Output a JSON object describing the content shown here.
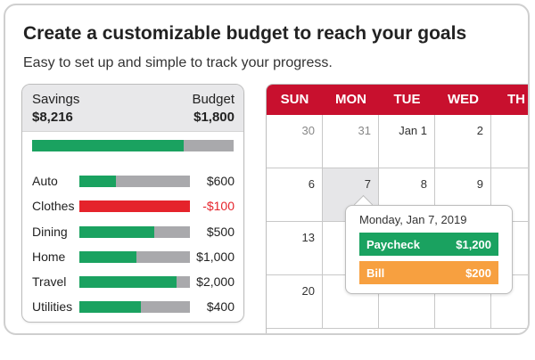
{
  "headline": "Create a customizable budget to reach your goals",
  "subheadline": "Easy to set up and simple to track your progress.",
  "budget": {
    "savings_label": "Savings",
    "savings_value": "$8,216",
    "budget_label": "Budget",
    "budget_value": "$1,800",
    "total_progress": 0.75,
    "categories": [
      {
        "name": "Auto",
        "amount": "$600",
        "progress": 0.33,
        "over": false
      },
      {
        "name": "Clothes",
        "amount": "-$100",
        "progress": 1.0,
        "over": true
      },
      {
        "name": "Dining",
        "amount": "$500",
        "progress": 0.68,
        "over": false
      },
      {
        "name": "Home",
        "amount": "$1,000",
        "progress": 0.52,
        "over": false
      },
      {
        "name": "Travel",
        "amount": "$2,000",
        "progress": 0.88,
        "over": false
      },
      {
        "name": "Utilities",
        "amount": "$400",
        "progress": 0.56,
        "over": false
      }
    ]
  },
  "calendar": {
    "days": [
      "SUN",
      "MON",
      "TUE",
      "WED",
      "TH"
    ],
    "weeks": [
      [
        "30",
        "31",
        "Jan 1",
        "2",
        ""
      ],
      [
        "6",
        "7",
        "8",
        "9",
        ""
      ],
      [
        "13",
        "",
        "",
        "",
        ""
      ],
      [
        "20",
        "",
        "",
        "",
        ""
      ]
    ],
    "highlighted": "7"
  },
  "tooltip": {
    "date": "Monday, Jan 7, 2019",
    "items": [
      {
        "label": "Paycheck",
        "amount": "$1,200",
        "color": "#1aa260"
      },
      {
        "label": "Bill",
        "amount": "$200",
        "color": "#f7a040"
      }
    ]
  },
  "colors": {
    "green": "#1aa260",
    "red": "#e5232b",
    "calendar_header": "#c8102e",
    "orange": "#f7a040"
  }
}
